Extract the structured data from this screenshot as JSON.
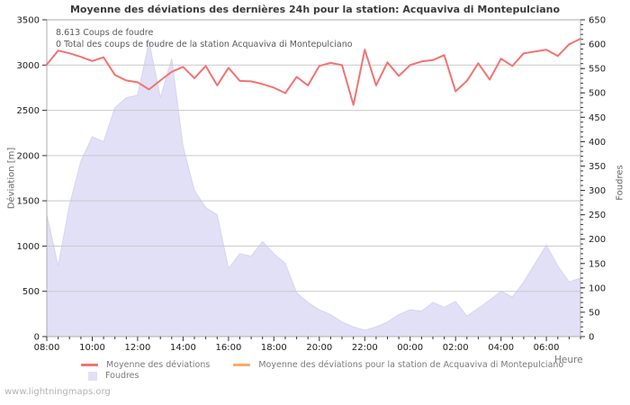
{
  "page": {
    "title": "Moyenne des déviations des dernières 24h pour la station: Acquaviva di Montepulciano",
    "watermark": "www.lightningmaps.org"
  },
  "chart_data": {
    "type": "line",
    "title": "Moyenne des déviations des dernières 24h pour la station: Acquaviva di Montepulciano",
    "xlabel": "Heure",
    "annotations": {
      "strikes": "8.613  Coups de foudre",
      "station_total": "0 Total des coups de foudre de la station Acquaviva di Montepulciano"
    },
    "times": [
      "08:00",
      "08:30",
      "09:00",
      "09:30",
      "10:00",
      "10:30",
      "11:00",
      "11:30",
      "12:00",
      "12:30",
      "13:00",
      "13:30",
      "14:00",
      "14:30",
      "15:00",
      "15:30",
      "16:00",
      "16:30",
      "17:00",
      "17:30",
      "18:00",
      "18:30",
      "19:00",
      "19:30",
      "20:00",
      "20:30",
      "21:00",
      "21:30",
      "22:00",
      "22:30",
      "23:00",
      "23:30",
      "00:00",
      "00:30",
      "01:00",
      "01:30",
      "02:00",
      "02:30",
      "03:00",
      "03:30",
      "04:00",
      "04:30",
      "05:00",
      "05:30",
      "06:00",
      "06:30",
      "07:00",
      "07:30"
    ],
    "x_tick_labels": [
      "08:00",
      "10:00",
      "12:00",
      "14:00",
      "16:00",
      "18:00",
      "20:00",
      "22:00",
      "00:00",
      "02:00",
      "04:00",
      "06:00"
    ],
    "left_axis": {
      "label": "Déviation [m]",
      "min": 0,
      "max": 3500,
      "tick_step": 500
    },
    "right_axis": {
      "label": "Foudres",
      "min": 0,
      "max": 650,
      "tick_step": 50,
      "minor_step": 10
    },
    "grid_on": true,
    "grid_color": "#c9c9c9",
    "frame_color": "#adadad",
    "tick_color": "#333333",
    "tick_label_color": "#1c1c1c",
    "legend_position": "bottom",
    "series": [
      {
        "name": "Moyenne des déviations",
        "type": "line",
        "axis": "left",
        "color": "#f47272",
        "values": [
          3005,
          3160,
          3130,
          3090,
          3045,
          3085,
          2890,
          2830,
          2810,
          2730,
          2830,
          2925,
          2980,
          2855,
          2990,
          2775,
          2970,
          2825,
          2820,
          2790,
          2750,
          2690,
          2870,
          2775,
          2990,
          3025,
          3000,
          2560,
          3170,
          2775,
          3030,
          2880,
          3000,
          3040,
          3055,
          3110,
          2710,
          2825,
          3020,
          2840,
          3070,
          2990,
          3130,
          3150,
          3170,
          3100,
          3230,
          3290
        ]
      },
      {
        "name": "Moyenne des déviations pour la station de Acquaviva di Montepulciano",
        "type": "line",
        "axis": "left",
        "color": "#fbaa6e",
        "values": []
      },
      {
        "name": "Foudres",
        "type": "area",
        "axis": "right",
        "color": "#e2e0f7",
        "stroke": "#d6d4f0",
        "values": [
          250,
          145,
          270,
          360,
          410,
          400,
          470,
          490,
          495,
          605,
          490,
          570,
          390,
          300,
          265,
          250,
          140,
          170,
          165,
          195,
          170,
          150,
          90,
          70,
          55,
          45,
          30,
          20,
          13,
          20,
          30,
          45,
          55,
          52,
          70,
          60,
          72,
          42,
          58,
          75,
          93,
          81,
          112,
          150,
          188,
          145,
          112,
          120
        ]
      }
    ]
  }
}
